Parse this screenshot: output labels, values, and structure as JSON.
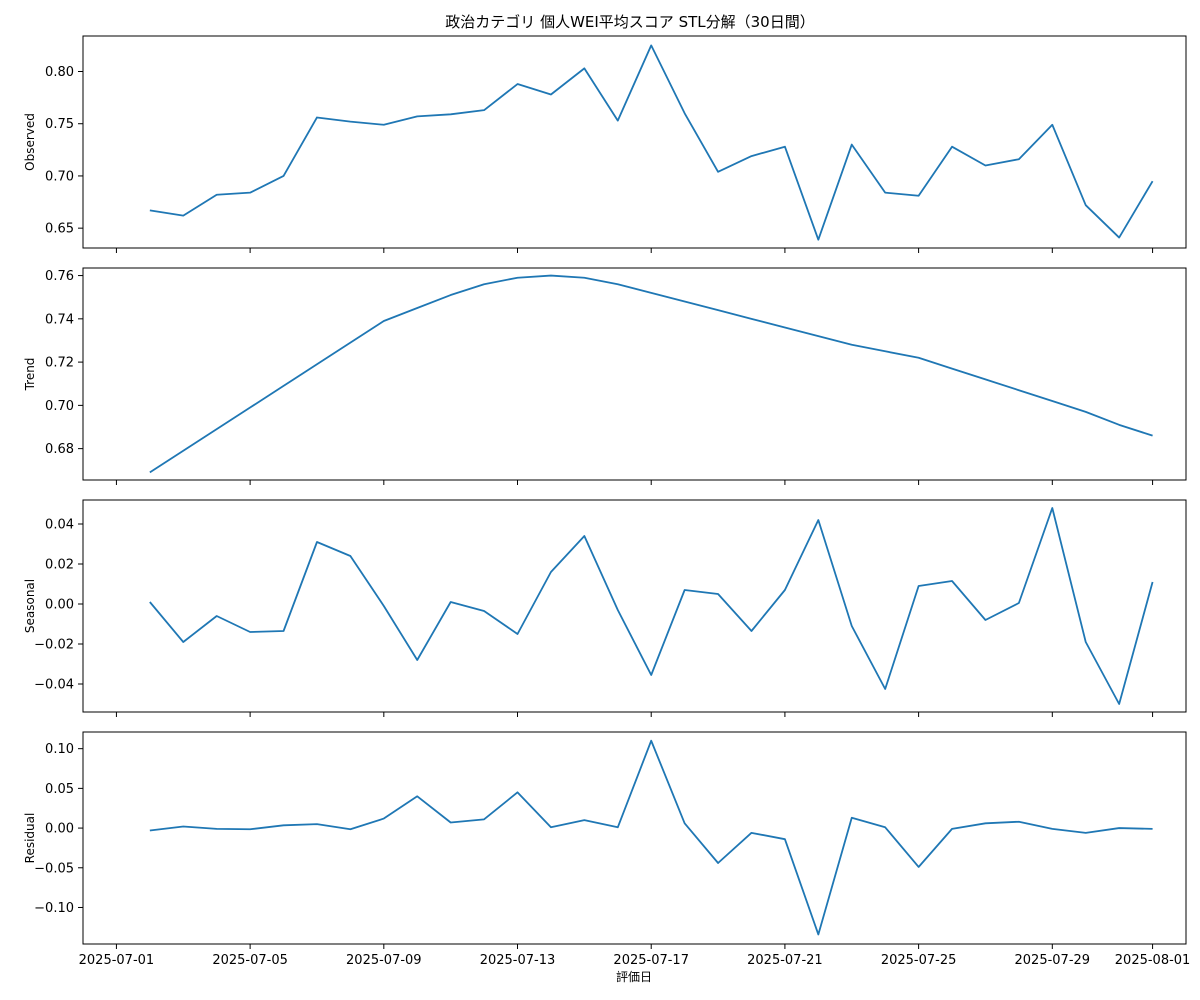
{
  "chart_data": {
    "type": "line",
    "title": "政治カテゴリ 個人WEI平均スコア STL分解（30日間）",
    "xlabel": "評価日",
    "x_dates": [
      "2025-07-02",
      "2025-07-03",
      "2025-07-04",
      "2025-07-05",
      "2025-07-06",
      "2025-07-07",
      "2025-07-08",
      "2025-07-09",
      "2025-07-10",
      "2025-07-11",
      "2025-07-12",
      "2025-07-13",
      "2025-07-14",
      "2025-07-15",
      "2025-07-16",
      "2025-07-17",
      "2025-07-18",
      "2025-07-19",
      "2025-07-20",
      "2025-07-21",
      "2025-07-22",
      "2025-07-23",
      "2025-07-24",
      "2025-07-25",
      "2025-07-26",
      "2025-07-27",
      "2025-07-28",
      "2025-07-29",
      "2025-07-30",
      "2025-07-31",
      "2025-08-01"
    ],
    "x_tick_labels": [
      "2025-07-01",
      "2025-07-05",
      "2025-07-09",
      "2025-07-13",
      "2025-07-17",
      "2025-07-21",
      "2025-07-25",
      "2025-07-29",
      "2025-08-01"
    ],
    "x_range": [
      "2025-06-30",
      "2025-08-02"
    ],
    "grid": false,
    "panels": [
      {
        "ylabel": "Observed",
        "ylim": [
          0.631,
          0.834
        ],
        "y_ticks": [
          0.65,
          0.7,
          0.75,
          0.8
        ],
        "y_tick_labels": [
          "0.65",
          "0.70",
          "0.75",
          "0.80"
        ],
        "values": [
          0.667,
          0.662,
          0.682,
          0.684,
          0.7,
          0.756,
          0.752,
          0.749,
          0.757,
          0.759,
          0.763,
          0.788,
          0.778,
          0.803,
          0.753,
          0.825,
          0.76,
          0.704,
          0.719,
          0.728,
          0.639,
          0.73,
          0.684,
          0.681,
          0.728,
          0.71,
          0.716,
          0.749,
          0.672,
          0.641,
          0.695
        ]
      },
      {
        "ylabel": "Trend",
        "ylim": [
          0.6655,
          0.7635
        ],
        "y_ticks": [
          0.68,
          0.7,
          0.72,
          0.74,
          0.76
        ],
        "y_tick_labels": [
          "0.68",
          "0.70",
          "0.72",
          "0.74",
          "0.76"
        ],
        "values": [
          0.669,
          0.679,
          0.689,
          0.699,
          0.709,
          0.719,
          0.729,
          0.739,
          0.745,
          0.751,
          0.756,
          0.759,
          0.76,
          0.759,
          0.756,
          0.752,
          0.748,
          0.744,
          0.74,
          0.736,
          0.732,
          0.728,
          0.725,
          0.722,
          0.717,
          0.712,
          0.707,
          0.702,
          0.697,
          0.691,
          0.686
        ]
      },
      {
        "ylabel": "Seasonal",
        "ylim": [
          -0.054,
          0.052
        ],
        "y_ticks": [
          -0.04,
          -0.02,
          0.0,
          0.02,
          0.04
        ],
        "y_tick_labels": [
          "−0.04",
          "−0.02",
          "0.00",
          "0.02",
          "0.04"
        ],
        "values": [
          0.001,
          -0.019,
          -0.006,
          -0.014,
          -0.0135,
          0.031,
          0.024,
          -0.001,
          -0.028,
          0.001,
          -0.0035,
          -0.015,
          0.016,
          0.034,
          -0.003,
          -0.0355,
          0.007,
          0.005,
          -0.0135,
          0.007,
          0.042,
          -0.011,
          -0.0425,
          0.009,
          0.0115,
          -0.008,
          0.0005,
          0.048,
          -0.019,
          -0.05,
          0.011
        ]
      },
      {
        "ylabel": "Residual",
        "ylim": [
          -0.146,
          0.121
        ],
        "y_ticks": [
          -0.1,
          -0.05,
          0.0,
          0.05,
          0.1
        ],
        "y_tick_labels": [
          "−0.10",
          "−0.05",
          "0.00",
          "0.05",
          "0.10"
        ],
        "values": [
          -0.003,
          0.002,
          -0.001,
          -0.0015,
          0.0035,
          0.005,
          -0.0015,
          0.012,
          0.04,
          0.007,
          0.011,
          0.045,
          0.001,
          0.01,
          0.001,
          0.11,
          0.006,
          -0.044,
          -0.006,
          -0.014,
          -0.134,
          0.013,
          0.001,
          -0.049,
          -0.001,
          0.006,
          0.008,
          -0.001,
          -0.006,
          0.0,
          -0.001
        ]
      }
    ],
    "colors": {
      "line": "#1f77b4",
      "frame": "#000000"
    }
  }
}
